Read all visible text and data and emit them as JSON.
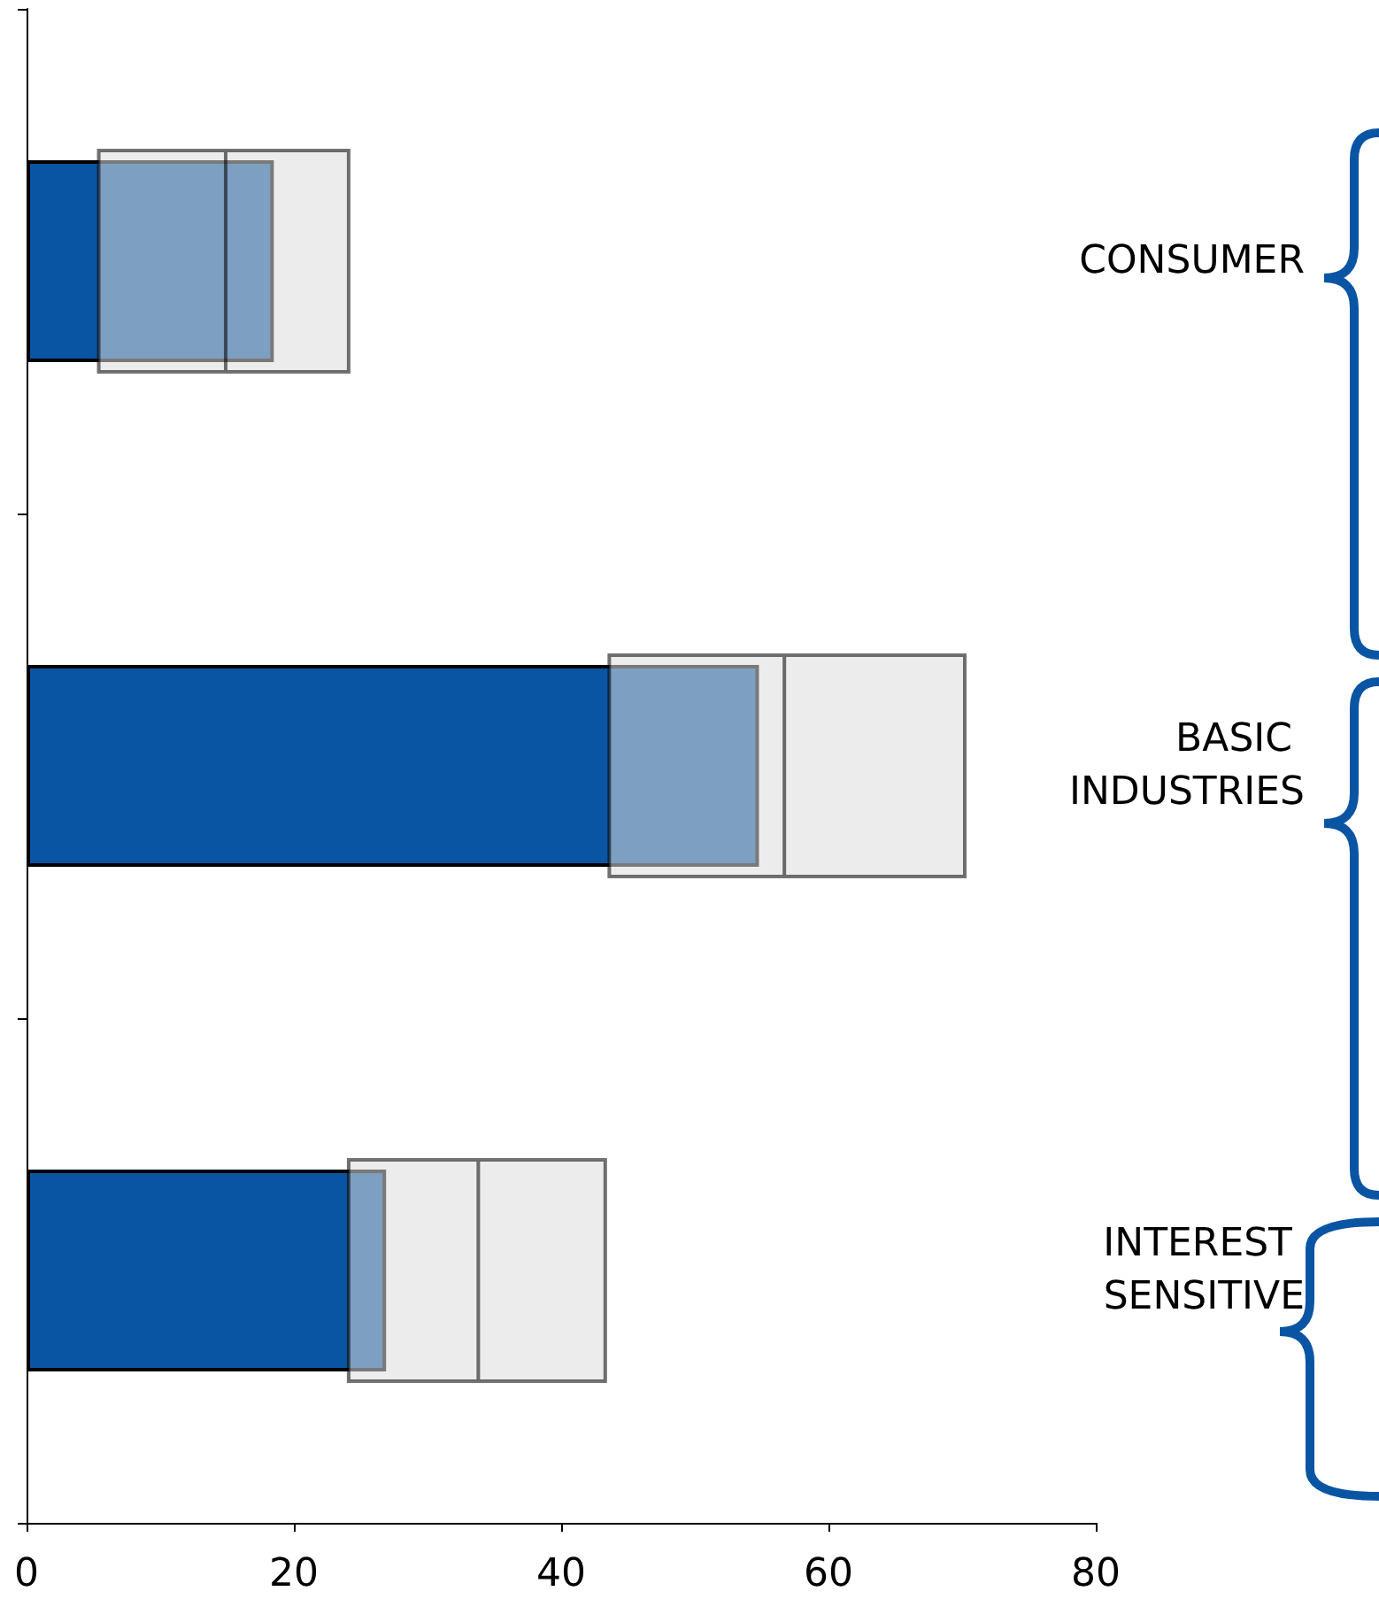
{
  "chart_data": {
    "type": "bar",
    "orientation": "horizontal",
    "categories": [
      "CONSUMER",
      "BASIC INDUSTRIES",
      "INTEREST SENSITIVE"
    ],
    "series": [
      {
        "color": "#0a55a3",
        "values": [
          18.5,
          54.8,
          26.9
        ]
      },
      {
        "type": "box",
        "color": "#dddddd",
        "boxes": [
          {
            "low": 5.4,
            "q1": 5.4,
            "median": 14.9,
            "q3": 24.1,
            "high": 24.1
          },
          {
            "low": 43.6,
            "q1": 43.6,
            "median": 56.7,
            "q3": 70.2,
            "high": 70.2
          },
          {
            "low": 24.1,
            "q1": 24.1,
            "median": 33.8,
            "q3": 43.3,
            "high": 43.3
          }
        ]
      }
    ],
    "xlim": [
      0,
      80
    ],
    "xticks": [
      0,
      20,
      40,
      60,
      80
    ],
    "grid": false
  }
}
